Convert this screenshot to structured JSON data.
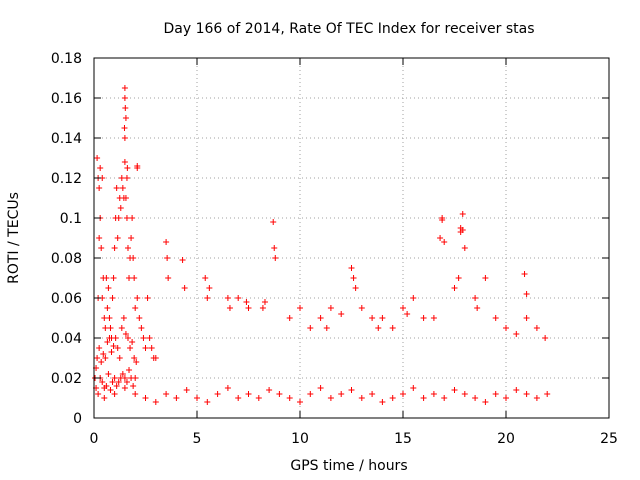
{
  "chart_data": {
    "type": "scatter",
    "title": "Day 166 of 2014, Rate Of TEC Index for receiver stas",
    "xlabel": "GPS time / hours",
    "ylabel": "ROTI / TECUs",
    "xlim": [
      0,
      25
    ],
    "ylim": [
      0,
      0.18
    ],
    "xticks": [
      0,
      5,
      10,
      15,
      20,
      25
    ],
    "yticks": [
      0,
      0.02,
      0.04,
      0.06,
      0.08,
      0.1,
      0.12,
      0.14,
      0.16,
      0.18
    ],
    "xtick_labels": [
      "0",
      "5",
      "10",
      "15",
      "20",
      "25"
    ],
    "ytick_labels": [
      "0",
      "0.02",
      "0.04",
      "0.06",
      "0.08",
      "0.1",
      "0.12",
      "0.14",
      "0.16",
      "0.18"
    ],
    "grid": true,
    "marker": "+",
    "color": "#ff0000",
    "series": [
      {
        "name": "stas",
        "x": [
          0.05,
          0.1,
          0.15,
          0.2,
          0.25,
          0.3,
          0.35,
          0.4,
          0.45,
          0.5,
          0.55,
          0.6,
          0.65,
          0.7,
          0.75,
          0.8,
          0.85,
          0.9,
          0.95,
          1.0,
          1.05,
          1.1,
          1.15,
          1.2,
          1.25,
          1.3,
          1.35,
          1.4,
          1.45,
          1.5,
          1.55,
          1.6,
          1.65,
          1.7,
          1.75,
          1.8,
          1.85,
          1.9,
          1.95,
          2.0,
          2.1,
          2.2,
          2.3,
          2.4,
          2.5,
          2.6,
          2.7,
          2.8,
          2.9,
          3.0,
          0.1,
          0.2,
          0.3,
          0.4,
          0.5,
          0.6,
          0.7,
          0.8,
          0.9,
          1.0,
          1.1,
          1.2,
          1.3,
          1.4,
          1.5,
          1.6,
          1.7,
          1.8,
          1.9,
          2.0,
          0.15,
          0.25,
          0.35,
          0.45,
          0.55,
          0.65,
          0.75,
          0.85,
          0.95,
          1.05,
          1.15,
          1.25,
          1.35,
          1.45,
          1.55,
          1.65,
          1.75,
          1.85,
          1.95,
          2.05,
          0.3,
          0.4,
          1.5,
          1.5,
          1.52,
          1.55,
          1.48,
          1.5,
          1.6,
          1.62,
          2.1,
          2.1,
          0.2,
          0.25,
          3.5,
          3.55,
          3.6,
          4.3,
          4.4,
          5.4,
          5.5,
          5.6,
          6.5,
          6.6,
          7.0,
          7.4,
          7.5,
          8.2,
          8.3,
          8.7,
          8.75,
          8.8,
          9.5,
          10.0,
          10.5,
          11.0,
          11.3,
          11.5,
          12.0,
          12.5,
          12.6,
          12.7,
          13.0,
          13.5,
          13.8,
          14.0,
          14.5,
          15.0,
          15.2,
          15.5,
          16.0,
          16.5,
          16.8,
          16.9,
          17.0,
          17.5,
          17.7,
          17.8,
          17.9,
          18.0,
          18.5,
          18.6,
          19.0,
          19.5,
          20.0,
          20.5,
          21.0,
          21.5,
          21.9,
          16.9,
          17.8,
          17.9,
          20.9,
          21.0,
          0.5,
          1.0,
          1.5,
          2.0,
          2.5,
          3.0,
          3.5,
          4.0,
          4.5,
          5.0,
          5.5,
          6.0,
          6.5,
          7.0,
          7.5,
          8.0,
          8.5,
          9.0,
          9.5,
          10.0,
          10.5,
          11.0,
          11.5,
          12.0,
          12.5,
          13.0,
          13.5,
          14.0,
          14.5,
          15.0,
          15.5,
          16.0,
          16.5,
          17.0,
          17.5,
          18.0,
          18.5,
          19.0,
          19.5,
          20.0,
          20.5,
          21.0,
          21.5,
          22.0
        ],
        "y": [
          0.02,
          0.025,
          0.13,
          0.06,
          0.09,
          0.1,
          0.085,
          0.06,
          0.07,
          0.05,
          0.045,
          0.07,
          0.055,
          0.065,
          0.05,
          0.045,
          0.04,
          0.06,
          0.07,
          0.085,
          0.1,
          0.115,
          0.09,
          0.1,
          0.11,
          0.105,
          0.12,
          0.115,
          0.11,
          0.14,
          0.11,
          0.1,
          0.085,
          0.07,
          0.08,
          0.09,
          0.1,
          0.08,
          0.07,
          0.055,
          0.06,
          0.05,
          0.045,
          0.04,
          0.035,
          0.06,
          0.04,
          0.035,
          0.03,
          0.03,
          0.015,
          0.012,
          0.02,
          0.018,
          0.015,
          0.016,
          0.022,
          0.014,
          0.018,
          0.02,
          0.016,
          0.018,
          0.02,
          0.022,
          0.02,
          0.018,
          0.024,
          0.02,
          0.016,
          0.02,
          0.03,
          0.035,
          0.028,
          0.032,
          0.03,
          0.038,
          0.04,
          0.033,
          0.036,
          0.04,
          0.035,
          0.03,
          0.045,
          0.05,
          0.042,
          0.04,
          0.035,
          0.038,
          0.03,
          0.028,
          0.125,
          0.12,
          0.165,
          0.16,
          0.155,
          0.15,
          0.145,
          0.128,
          0.12,
          0.125,
          0.126,
          0.125,
          0.12,
          0.115,
          0.088,
          0.08,
          0.07,
          0.079,
          0.065,
          0.07,
          0.06,
          0.065,
          0.06,
          0.055,
          0.06,
          0.058,
          0.055,
          0.055,
          0.058,
          0.098,
          0.085,
          0.08,
          0.05,
          0.055,
          0.045,
          0.05,
          0.045,
          0.055,
          0.052,
          0.075,
          0.07,
          0.065,
          0.055,
          0.05,
          0.045,
          0.05,
          0.045,
          0.055,
          0.052,
          0.06,
          0.05,
          0.05,
          0.09,
          0.1,
          0.088,
          0.065,
          0.07,
          0.095,
          0.102,
          0.085,
          0.06,
          0.055,
          0.07,
          0.05,
          0.045,
          0.042,
          0.05,
          0.045,
          0.04,
          0.099,
          0.093,
          0.094,
          0.072,
          0.062,
          0.01,
          0.012,
          0.015,
          0.012,
          0.01,
          0.008,
          0.012,
          0.01,
          0.014,
          0.01,
          0.008,
          0.012,
          0.015,
          0.01,
          0.012,
          0.01,
          0.014,
          0.012,
          0.01,
          0.008,
          0.012,
          0.015,
          0.01,
          0.012,
          0.014,
          0.01,
          0.012,
          0.008,
          0.01,
          0.012,
          0.015,
          0.01,
          0.012,
          0.01,
          0.014,
          0.012,
          0.01,
          0.008,
          0.012,
          0.01,
          0.014,
          0.012,
          0.01,
          0.012
        ]
      }
    ]
  }
}
